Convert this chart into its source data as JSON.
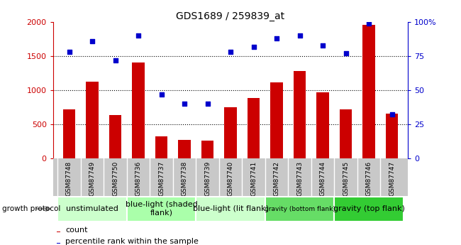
{
  "title": "GDS1689 / 259839_at",
  "samples": [
    "GSM87748",
    "GSM87749",
    "GSM87750",
    "GSM87736",
    "GSM87737",
    "GSM87738",
    "GSM87739",
    "GSM87740",
    "GSM87741",
    "GSM87742",
    "GSM87743",
    "GSM87744",
    "GSM87745",
    "GSM87746",
    "GSM87747"
  ],
  "counts": [
    720,
    1120,
    630,
    1400,
    320,
    270,
    260,
    750,
    880,
    1110,
    1280,
    970,
    720,
    1960,
    650
  ],
  "percentiles": [
    78,
    86,
    72,
    90,
    47,
    40,
    40,
    78,
    82,
    88,
    90,
    83,
    77,
    99,
    32
  ],
  "count_color": "#cc0000",
  "percentile_color": "#0000cc",
  "ylim_left": [
    0,
    2000
  ],
  "ylim_right": [
    0,
    100
  ],
  "yticks_left": [
    0,
    500,
    1000,
    1500,
    2000
  ],
  "ytick_labels_left": [
    "0",
    "500",
    "1000",
    "1500",
    "2000"
  ],
  "yticks_right": [
    0,
    25,
    50,
    75,
    100
  ],
  "ytick_labels_right": [
    "0",
    "25",
    "50",
    "75",
    "100%"
  ],
  "groups": [
    {
      "label": "unstimulated",
      "start": 0,
      "end": 3,
      "color": "#ccffcc",
      "fontsize": 8
    },
    {
      "label": "blue-light (shaded\nflank)",
      "start": 3,
      "end": 6,
      "color": "#aaffaa",
      "fontsize": 8
    },
    {
      "label": "blue-light (lit flank)",
      "start": 6,
      "end": 9,
      "color": "#ccffcc",
      "fontsize": 8
    },
    {
      "label": "gravity (bottom flank)",
      "start": 9,
      "end": 12,
      "color": "#66dd66",
      "fontsize": 6.5
    },
    {
      "label": "gravity (top flank)",
      "start": 12,
      "end": 15,
      "color": "#33cc33",
      "fontsize": 8
    }
  ],
  "growth_protocol_label": "growth protocol",
  "legend_count_label": "count",
  "legend_percentile_label": "percentile rank within the sample",
  "bar_width": 0.55,
  "background_color": "#ffffff",
  "plot_bg_color": "#ffffff",
  "tick_label_area_color": "#c8c8c8",
  "grid_yticks": [
    500,
    1000,
    1500
  ]
}
